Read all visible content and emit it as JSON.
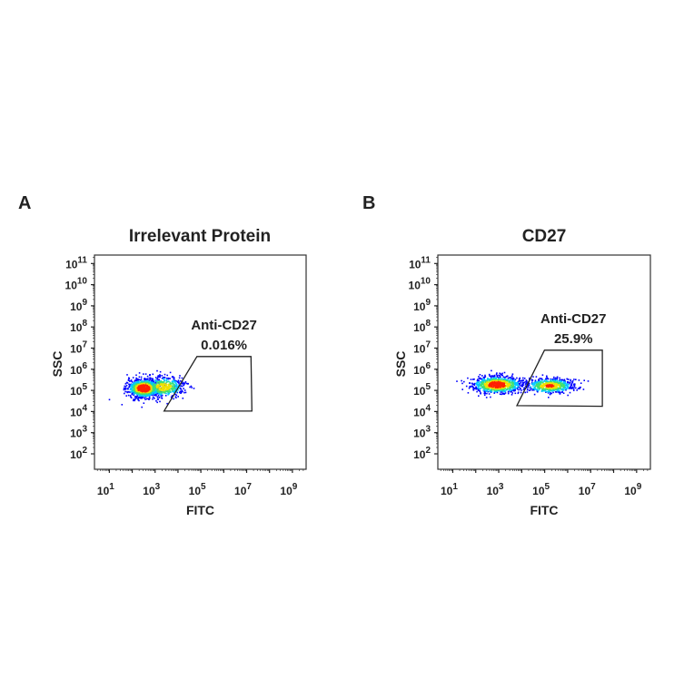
{
  "chart_data": [
    {
      "type": "scatter",
      "panel_label": "A",
      "title": "Irrelevant Protein",
      "xlabel": "FITC",
      "ylabel": "SSC",
      "x_scale": "log",
      "y_scale": "log",
      "x_ticks": [
        1,
        3,
        5,
        7,
        9
      ],
      "y_ticks": [
        2,
        3,
        4,
        5,
        6,
        7,
        8,
        9,
        10,
        11
      ],
      "xlim_log10": [
        0.35,
        9.6
      ],
      "ylim_log10": [
        1.27,
        11.4
      ],
      "gate": {
        "label": "Anti-CD27",
        "value": "0.016%",
        "vertices_log10": [
          [
            3.39,
            4.02
          ],
          [
            4.83,
            6.6
          ],
          [
            7.19,
            6.6
          ],
          [
            7.23,
            4.02
          ]
        ]
      },
      "populations": [
        {
          "center_log10": [
            2.47,
            5.13
          ],
          "spread_log10": [
            0.35,
            0.22
          ],
          "weight": 0.65
        },
        {
          "center_log10": [
            3.35,
            5.2
          ],
          "spread_log10": [
            0.45,
            0.25
          ],
          "weight": 0.35
        }
      ],
      "grid": false
    },
    {
      "type": "scatter",
      "panel_label": "B",
      "title": "CD27",
      "xlabel": "FITC",
      "ylabel": "SSC",
      "x_scale": "log",
      "y_scale": "log",
      "x_ticks": [
        1,
        3,
        5,
        7,
        9
      ],
      "y_ticks": [
        2,
        3,
        4,
        5,
        6,
        7,
        8,
        9,
        10,
        11
      ],
      "xlim_log10": [
        0.35,
        9.6
      ],
      "ylim_log10": [
        1.27,
        11.4
      ],
      "gate": {
        "label": "Anti-CD27",
        "value": "25.9%",
        "vertices_log10": [
          [
            3.79,
            4.28
          ],
          [
            4.99,
            6.9
          ],
          [
            7.51,
            6.9
          ],
          [
            7.51,
            4.25
          ]
        ]
      },
      "populations": [
        {
          "center_log10": [
            2.9,
            5.3
          ],
          "spread_log10": [
            0.55,
            0.2
          ],
          "weight": 0.6
        },
        {
          "center_log10": [
            5.2,
            5.25
          ],
          "spread_log10": [
            0.55,
            0.18
          ],
          "weight": 0.4
        }
      ],
      "grid": false
    }
  ],
  "colors": {
    "axis": "#222222",
    "density": [
      "#0000ff",
      "#00c8ff",
      "#40e070",
      "#f0e000",
      "#ff2000"
    ]
  }
}
